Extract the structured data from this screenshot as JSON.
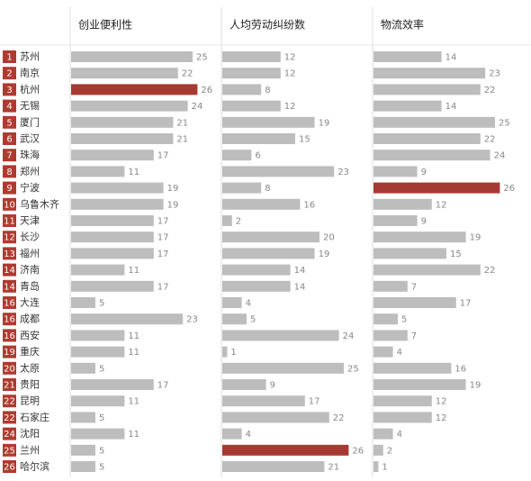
{
  "chart_data": {
    "type": "bar",
    "ranks": [
      1,
      2,
      3,
      4,
      5,
      6,
      7,
      8,
      9,
      10,
      11,
      12,
      13,
      14,
      14,
      16,
      16,
      16,
      19,
      20,
      21,
      22,
      22,
      24,
      25,
      26
    ],
    "categories": [
      "苏州",
      "南京",
      "杭州",
      "无锡",
      "厦门",
      "武汉",
      "珠海",
      "郑州",
      "宁波",
      "乌鲁木齐",
      "天津",
      "长沙",
      "福州",
      "济南",
      "青岛",
      "大连",
      "成都",
      "西安",
      "重庆",
      "太原",
      "贵阳",
      "昆明",
      "石家庄",
      "沈阳",
      "兰州",
      "哈尔滨"
    ],
    "color": "#bdbdbd",
    "highlight_color": "#a63a32",
    "series": [
      {
        "name": "创业便利性",
        "values": [
          25,
          22,
          26,
          24,
          21,
          21,
          17,
          11,
          19,
          19,
          17,
          17,
          17,
          11,
          17,
          5,
          23,
          11,
          11,
          5,
          17,
          11,
          5,
          11,
          5,
          5
        ]
      },
      {
        "name": "人均劳动纠纷数",
        "values": [
          12,
          12,
          8,
          12,
          19,
          15,
          6,
          23,
          8,
          16,
          2,
          20,
          19,
          14,
          14,
          4,
          5,
          24,
          1,
          25,
          9,
          17,
          22,
          4,
          26,
          21
        ]
      },
      {
        "name": "物流效率",
        "values": [
          14,
          23,
          22,
          14,
          25,
          22,
          24,
          9,
          26,
          12,
          9,
          19,
          15,
          22,
          7,
          17,
          5,
          7,
          4,
          16,
          19,
          12,
          12,
          4,
          2,
          1
        ]
      }
    ]
  }
}
